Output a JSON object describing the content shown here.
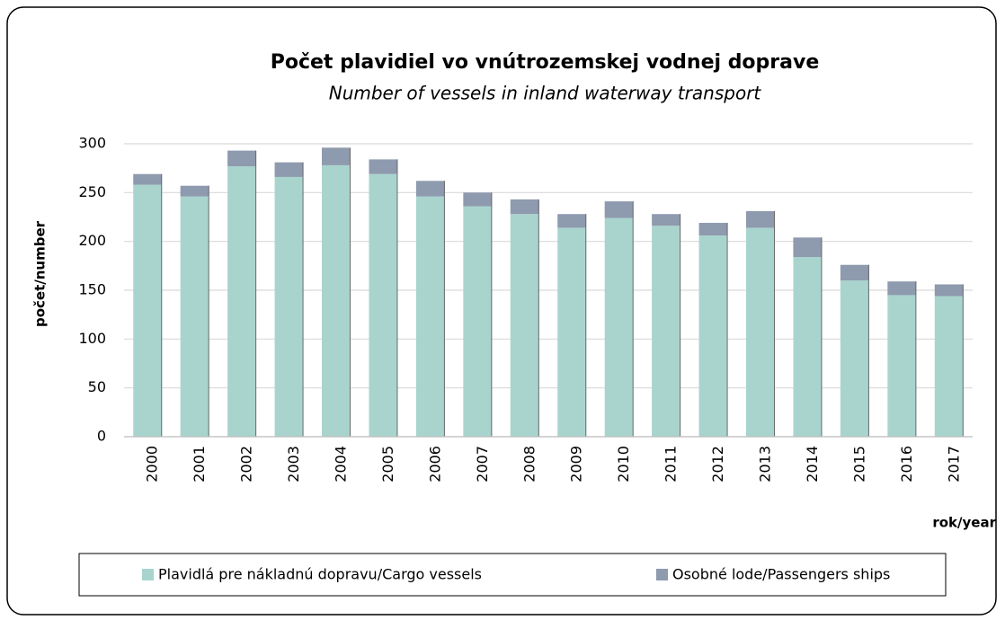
{
  "chart_data": {
    "type": "stacked_bar",
    "title": "Počet plavidiel vo vnútrozemskej vodnej doprave",
    "subtitle": "Number of vessels in inland waterway transport",
    "y_label": "počet/number",
    "x_label": "rok/year",
    "categories": [
      "2000",
      "2001",
      "2002",
      "2003",
      "2004",
      "2005",
      "2006",
      "2007",
      "2008",
      "2009",
      "2010",
      "2011",
      "2012",
      "2013",
      "2014",
      "2015",
      "2016",
      "2017"
    ],
    "series": [
      {
        "name": "Plavidlá pre nákladnú dopravu/Cargo vessels",
        "color": "#a9d4ce",
        "values": [
          258,
          246,
          277,
          266,
          278,
          269,
          246,
          236,
          228,
          214,
          224,
          216,
          206,
          214,
          184,
          160,
          145,
          144
        ]
      },
      {
        "name": "Osobné lode/Passengers ships",
        "color": "#8e9aae",
        "values": [
          11,
          11,
          16,
          15,
          18,
          15,
          16,
          14,
          15,
          14,
          17,
          12,
          13,
          17,
          20,
          16,
          14,
          12
        ]
      }
    ],
    "ylim": [
      0,
      300
    ],
    "yticks": [
      0,
      50,
      100,
      150,
      200,
      250,
      300
    ],
    "grid": true,
    "legend": "bottom"
  }
}
